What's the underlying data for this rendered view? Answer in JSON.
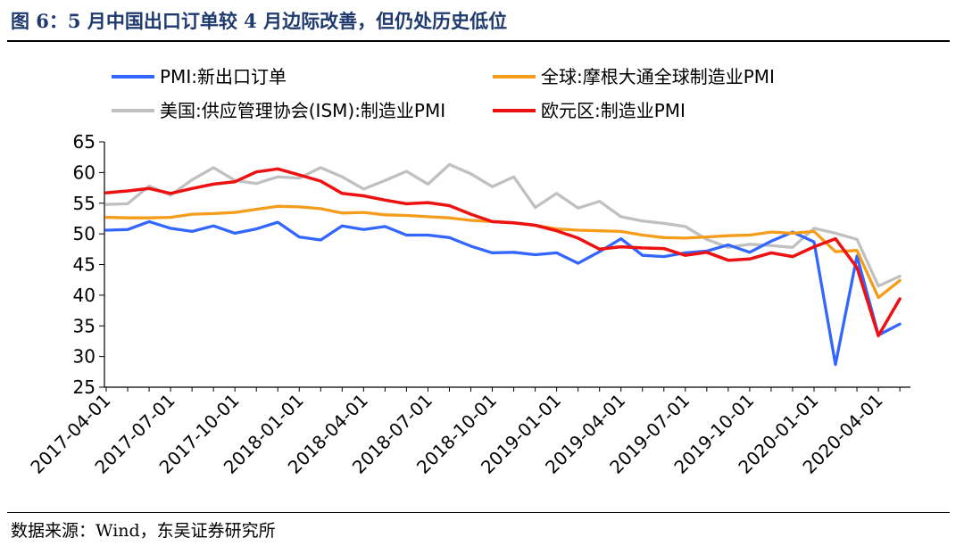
{
  "figure": {
    "title": "图 6：5 月中国出口订单较 4 月边际改善，但仍处历史低位",
    "source": "数据来源：Wind，东吴证券研究所"
  },
  "chart_data": {
    "type": "line",
    "title": "",
    "xlabel": "",
    "ylabel": "",
    "ylim": [
      25,
      65
    ],
    "yticks": [
      25,
      30,
      35,
      40,
      45,
      50,
      55,
      60,
      65
    ],
    "xtick_labels": [
      "2017-04-01",
      "2017-07-01",
      "2017-10-01",
      "2018-01-01",
      "2018-04-01",
      "2018-07-01",
      "2018-10-01",
      "2019-01-01",
      "2019-04-01",
      "2019-07-01",
      "2019-10-01",
      "2020-01-01",
      "2020-04-01"
    ],
    "x": [
      "2017-04",
      "2017-05",
      "2017-06",
      "2017-07",
      "2017-08",
      "2017-09",
      "2017-10",
      "2017-11",
      "2017-12",
      "2018-01",
      "2018-02",
      "2018-03",
      "2018-04",
      "2018-05",
      "2018-06",
      "2018-07",
      "2018-08",
      "2018-09",
      "2018-10",
      "2018-11",
      "2018-12",
      "2019-01",
      "2019-02",
      "2019-03",
      "2019-04",
      "2019-05",
      "2019-06",
      "2019-07",
      "2019-08",
      "2019-09",
      "2019-10",
      "2019-11",
      "2019-12",
      "2020-01",
      "2020-02",
      "2020-03",
      "2020-04",
      "2020-05"
    ],
    "grid": false,
    "legend_position": "top",
    "series": [
      {
        "name": "PMI:新出口订单",
        "color": "#3366ff",
        "values": [
          50.6,
          50.7,
          52.0,
          50.9,
          50.4,
          51.3,
          50.1,
          50.8,
          51.9,
          49.5,
          49.0,
          51.3,
          50.7,
          51.2,
          49.8,
          49.8,
          49.4,
          48.0,
          46.9,
          47.0,
          46.6,
          46.9,
          45.2,
          47.1,
          49.2,
          46.5,
          46.3,
          46.9,
          47.2,
          48.2,
          47.0,
          48.8,
          50.3,
          48.7,
          28.7,
          46.4,
          33.5,
          35.3
        ]
      },
      {
        "name": "全球:摩根大通全球制造业PMI",
        "color": "#f59c1a",
        "values": [
          52.7,
          52.6,
          52.6,
          52.7,
          53.2,
          53.3,
          53.5,
          54.0,
          54.5,
          54.4,
          54.1,
          53.4,
          53.5,
          53.1,
          53.0,
          52.8,
          52.6,
          52.2,
          52.0,
          51.8,
          51.4,
          50.8,
          50.6,
          50.5,
          50.4,
          49.8,
          49.4,
          49.3,
          49.5,
          49.7,
          49.8,
          50.3,
          50.1,
          50.4,
          47.1,
          47.3,
          39.6,
          42.4
        ]
      },
      {
        "name": "美国:供应管理协会(ISM):制造业PMI",
        "color": "#c0c0c0",
        "values": [
          54.8,
          54.9,
          57.8,
          56.3,
          58.8,
          60.8,
          58.7,
          58.2,
          59.3,
          59.1,
          60.8,
          59.3,
          57.3,
          58.7,
          60.2,
          58.1,
          61.3,
          59.8,
          57.7,
          59.3,
          54.3,
          56.6,
          54.2,
          55.3,
          52.8,
          52.1,
          51.7,
          51.2,
          49.1,
          47.8,
          48.3,
          48.1,
          47.8,
          50.9,
          50.1,
          49.1,
          41.5,
          43.1
        ]
      },
      {
        "name": "欧元区:制造业PMI",
        "color": "#ee1111",
        "values": [
          56.7,
          57.0,
          57.4,
          56.6,
          57.4,
          58.1,
          58.5,
          60.1,
          60.6,
          59.6,
          58.6,
          56.6,
          56.2,
          55.5,
          54.9,
          55.1,
          54.6,
          53.2,
          52.0,
          51.8,
          51.4,
          50.5,
          49.3,
          47.5,
          47.9,
          47.7,
          47.6,
          46.5,
          47.0,
          45.7,
          45.9,
          46.9,
          46.3,
          47.9,
          49.2,
          44.5,
          33.4,
          39.4
        ]
      }
    ]
  }
}
